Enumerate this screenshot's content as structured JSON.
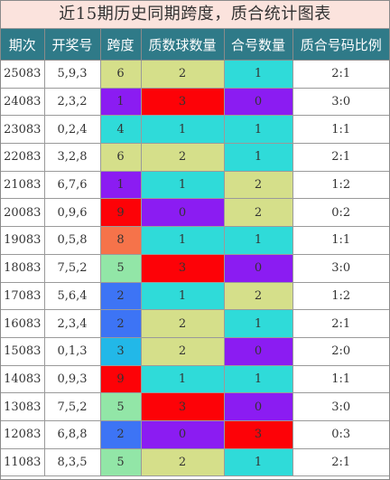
{
  "title": "近15期历史同期跨度，质合统计图表",
  "headers": [
    "期次",
    "开奖号",
    "跨度",
    "质数球数量",
    "合号数量",
    "质合号码比例"
  ],
  "colors": {
    "header_bg": "#2f7a88",
    "title_bg": "#fbe3dd",
    "green": "#92e6a7",
    "yellow_green": "#d5df8a",
    "cyan": "#2fdbd9",
    "purple": "#8b1cf2",
    "red": "#fd0207",
    "orange": "#f6734a",
    "blue": "#3d74f5",
    "sky": "#22b8e8"
  },
  "rows": [
    {
      "issue": "25083",
      "numbers": "5,9,3",
      "span": "6",
      "span_color": "yellow_green",
      "prime": "2",
      "prime_color": "yellow_green",
      "composite": "1",
      "composite_color": "cyan",
      "ratio": "2:1"
    },
    {
      "issue": "24083",
      "numbers": "2,3,2",
      "span": "1",
      "span_color": "purple",
      "prime": "3",
      "prime_color": "red",
      "composite": "0",
      "composite_color": "purple",
      "ratio": "3:0"
    },
    {
      "issue": "23083",
      "numbers": "0,2,4",
      "span": "4",
      "span_color": "cyan",
      "prime": "1",
      "prime_color": "cyan",
      "composite": "1",
      "composite_color": "cyan",
      "ratio": "1:1"
    },
    {
      "issue": "22083",
      "numbers": "3,2,8",
      "span": "6",
      "span_color": "yellow_green",
      "prime": "2",
      "prime_color": "yellow_green",
      "composite": "1",
      "composite_color": "cyan",
      "ratio": "2:1"
    },
    {
      "issue": "21083",
      "numbers": "6,7,6",
      "span": "1",
      "span_color": "purple",
      "prime": "1",
      "prime_color": "cyan",
      "composite": "2",
      "composite_color": "yellow_green",
      "ratio": "1:2"
    },
    {
      "issue": "20083",
      "numbers": "0,9,6",
      "span": "9",
      "span_color": "red",
      "prime": "0",
      "prime_color": "purple",
      "composite": "2",
      "composite_color": "yellow_green",
      "ratio": "0:2"
    },
    {
      "issue": "19083",
      "numbers": "0,5,8",
      "span": "8",
      "span_color": "orange",
      "prime": "1",
      "prime_color": "cyan",
      "composite": "1",
      "composite_color": "cyan",
      "ratio": "1:1"
    },
    {
      "issue": "18083",
      "numbers": "7,5,2",
      "span": "5",
      "span_color": "green",
      "prime": "3",
      "prime_color": "red",
      "composite": "0",
      "composite_color": "purple",
      "ratio": "3:0"
    },
    {
      "issue": "17083",
      "numbers": "5,6,4",
      "span": "2",
      "span_color": "blue",
      "prime": "1",
      "prime_color": "cyan",
      "composite": "2",
      "composite_color": "yellow_green",
      "ratio": "1:2"
    },
    {
      "issue": "16083",
      "numbers": "2,3,4",
      "span": "2",
      "span_color": "blue",
      "prime": "2",
      "prime_color": "yellow_green",
      "composite": "1",
      "composite_color": "cyan",
      "ratio": "2:1"
    },
    {
      "issue": "15083",
      "numbers": "0,1,3",
      "span": "3",
      "span_color": "sky",
      "prime": "2",
      "prime_color": "yellow_green",
      "composite": "0",
      "composite_color": "purple",
      "ratio": "2:0"
    },
    {
      "issue": "14083",
      "numbers": "0,9,3",
      "span": "9",
      "span_color": "red",
      "prime": "1",
      "prime_color": "cyan",
      "composite": "1",
      "composite_color": "cyan",
      "ratio": "1:1"
    },
    {
      "issue": "13083",
      "numbers": "7,5,2",
      "span": "5",
      "span_color": "green",
      "prime": "3",
      "prime_color": "red",
      "composite": "0",
      "composite_color": "purple",
      "ratio": "3:0"
    },
    {
      "issue": "12083",
      "numbers": "6,8,8",
      "span": "2",
      "span_color": "blue",
      "prime": "0",
      "prime_color": "purple",
      "composite": "3",
      "composite_color": "red",
      "ratio": "0:3"
    },
    {
      "issue": "11083",
      "numbers": "8,3,5",
      "span": "5",
      "span_color": "green",
      "prime": "2",
      "prime_color": "yellow_green",
      "composite": "1",
      "composite_color": "cyan",
      "ratio": "2:1"
    }
  ]
}
